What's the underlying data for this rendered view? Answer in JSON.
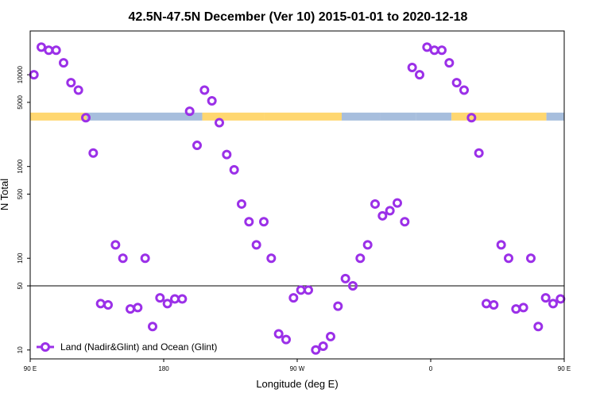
{
  "chart_data": {
    "type": "scatter",
    "title": "42.5N-47.5N December (Ver 10)   2015-01-01 to 2020-12-18",
    "xlabel": "Longitude (deg E)",
    "ylabel": "N Total",
    "xlim": [
      90,
      450
    ],
    "ylog": true,
    "ylim": [
      8,
      30000
    ],
    "x_ticks": [
      {
        "value": 90,
        "label": "90 E"
      },
      {
        "value": 180,
        "label": "180"
      },
      {
        "value": 270,
        "label": "90 W"
      },
      {
        "value": 360,
        "label": "0"
      },
      {
        "value": 450,
        "label": "90 E"
      },
      {
        "value": 540,
        "label": "180"
      }
    ],
    "y_ticks": [
      {
        "value": 10,
        "label": "10"
      },
      {
        "value": 50,
        "label": "50"
      },
      {
        "value": 100,
        "label": "100"
      },
      {
        "value": 500,
        "label": "500"
      },
      {
        "value": 1000,
        "label": "1000"
      },
      {
        "value": 5000,
        "label": "5000"
      },
      {
        "value": 10000,
        "label": "10000"
      }
    ],
    "reference_line": 50,
    "series": [
      {
        "name": "Land (Nadir&Glint) and Ocean (Glint)",
        "color": "#9b30e8",
        "x": [
          92.5,
          97.5,
          102.5,
          107.5,
          112.5,
          117.5,
          122.5,
          127.5,
          132.5,
          137.5,
          142.5,
          147.5,
          152.5,
          157.5,
          162.5,
          167.5,
          172.5,
          177.5,
          182.5,
          187.5,
          192.5,
          197.5,
          202.5,
          207.5,
          212.5,
          217.5,
          222.5,
          227.5,
          232.5,
          237.5,
          242.5,
          247.5,
          252.5,
          257.5,
          262.5,
          267.5,
          272.5,
          277.5,
          282.5,
          287.5,
          292.5,
          297.5,
          302.5,
          307.5,
          312.5,
          317.5,
          322.5,
          327.5,
          332.5,
          337.5,
          342.5,
          347.5,
          352.5,
          357.5,
          362.5,
          367.5,
          372.5,
          377.5,
          382.5,
          387.5,
          392.5,
          397.5,
          402.5,
          407.5,
          412.5,
          417.5,
          422.5,
          427.5,
          432.5,
          437.5,
          442.5,
          447.5
        ],
        "y": [
          10000,
          20000,
          18500,
          18500,
          13500,
          8200,
          6800,
          3400,
          1400,
          32,
          31,
          140,
          100,
          28,
          29,
          100,
          18,
          37,
          32,
          36,
          36,
          4000,
          1700,
          6800,
          5200,
          3000,
          1350,
          920,
          390,
          250,
          140,
          250,
          100,
          15,
          13,
          37,
          45,
          45,
          10,
          11,
          14,
          30,
          60,
          50,
          100,
          140,
          390,
          290,
          330,
          400,
          250,
          12000,
          10000,
          20000,
          18500,
          18500,
          13500,
          8200,
          6800,
          3400,
          1400,
          32,
          31,
          140,
          100,
          28,
          29,
          100,
          18,
          37,
          32,
          36
        ]
      }
    ],
    "surface_strip": {
      "y_center": 3500,
      "land_color": "#ffd770",
      "ocean_color": "#a7bedd",
      "segments": [
        {
          "x0": 90,
          "x1": 128,
          "kind": "land"
        },
        {
          "x0": 128,
          "x1": 206,
          "kind": "ocean"
        },
        {
          "x0": 206,
          "x1": 248,
          "kind": "land"
        },
        {
          "x0": 248,
          "x1": 300,
          "kind": "land"
        },
        {
          "x0": 300,
          "x1": 326,
          "kind": "ocean"
        },
        {
          "x0": 326,
          "x1": 350,
          "kind": "ocean"
        },
        {
          "x0": 350,
          "x1": 374,
          "kind": "ocean"
        },
        {
          "x0": 374,
          "x1": 438,
          "kind": "land"
        },
        {
          "x0": 438,
          "x1": 450,
          "kind": "ocean"
        }
      ]
    },
    "legend": {
      "position": "bottom-left",
      "label": "Land (Nadir&Glint) and Ocean (Glint)"
    }
  }
}
